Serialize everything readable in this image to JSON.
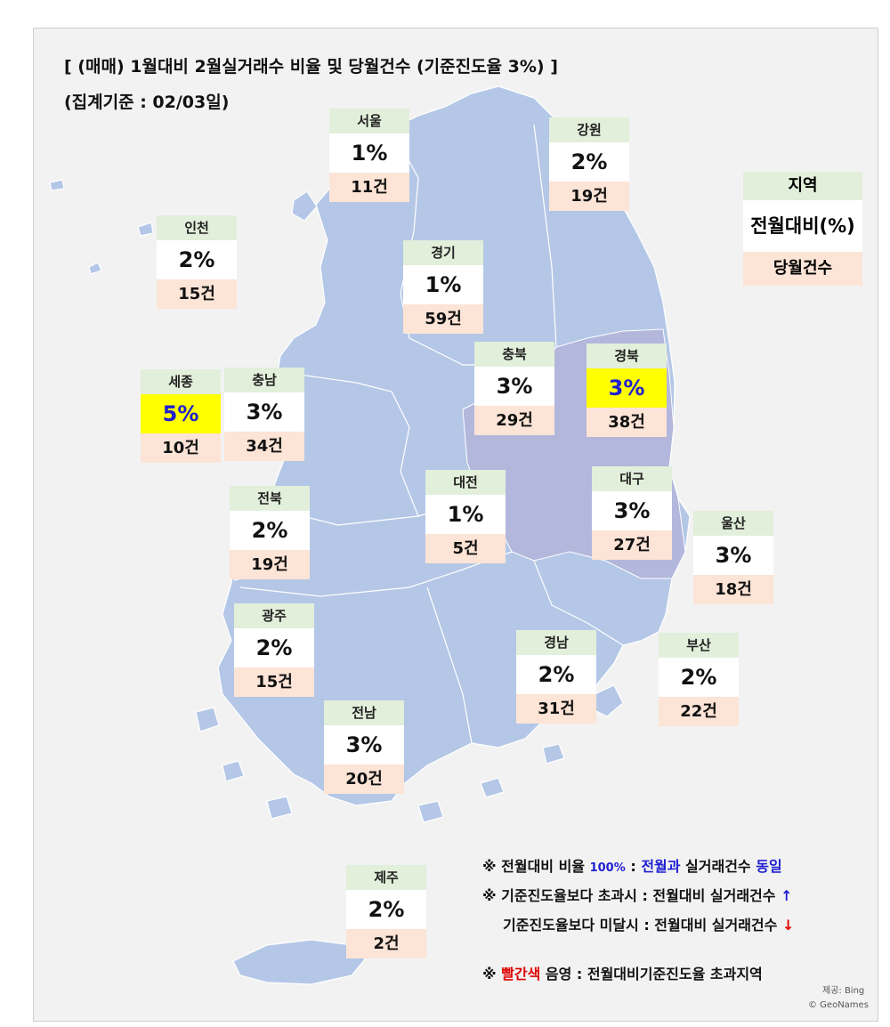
{
  "title_line1": "[ (매매) 1월대비 2월실거래수 비율 및 당월건수 (기준진도율 3%) ]",
  "title_line2": "(집계기준 : 02/03일)",
  "legend": {
    "name": "지역",
    "pct": "전월대비(%)",
    "cnt": "당월건수"
  },
  "regions": [
    {
      "id": "seoul",
      "name": "서울",
      "pct": "1%",
      "cnt": "11건",
      "highlight": false
    },
    {
      "id": "gangwon",
      "name": "강원",
      "pct": "2%",
      "cnt": "19건",
      "highlight": false
    },
    {
      "id": "incheon",
      "name": "인천",
      "pct": "2%",
      "cnt": "15건",
      "highlight": false
    },
    {
      "id": "gyeonggi",
      "name": "경기",
      "pct": "1%",
      "cnt": "59건",
      "highlight": false
    },
    {
      "id": "chungbuk",
      "name": "충북",
      "pct": "3%",
      "cnt": "29건",
      "highlight": false
    },
    {
      "id": "gyeongbuk",
      "name": "경북",
      "pct": "3%",
      "cnt": "38건",
      "highlight": true
    },
    {
      "id": "sejong",
      "name": "세종",
      "pct": "5%",
      "cnt": "10건",
      "highlight": true
    },
    {
      "id": "chungnam",
      "name": "충남",
      "pct": "3%",
      "cnt": "34건",
      "highlight": false
    },
    {
      "id": "daejeon",
      "name": "대전",
      "pct": "1%",
      "cnt": "5건",
      "highlight": false
    },
    {
      "id": "daegu",
      "name": "대구",
      "pct": "3%",
      "cnt": "27건",
      "highlight": false
    },
    {
      "id": "ulsan",
      "name": "울산",
      "pct": "3%",
      "cnt": "18건",
      "highlight": false
    },
    {
      "id": "jeonbuk",
      "name": "전북",
      "pct": "2%",
      "cnt": "19건",
      "highlight": false
    },
    {
      "id": "gwangju",
      "name": "광주",
      "pct": "2%",
      "cnt": "15건",
      "highlight": false
    },
    {
      "id": "gyeongnam",
      "name": "경남",
      "pct": "2%",
      "cnt": "31건",
      "highlight": false
    },
    {
      "id": "busan",
      "name": "부산",
      "pct": "2%",
      "cnt": "22건",
      "highlight": false
    },
    {
      "id": "jeonnam",
      "name": "전남",
      "pct": "3%",
      "cnt": "20건",
      "highlight": false
    },
    {
      "id": "jeju",
      "name": "제주",
      "pct": "2%",
      "cnt": "2건",
      "highlight": false
    }
  ],
  "notes": {
    "n1_prefix": "※ 전월대비 비율 ",
    "n1_pct": "100%",
    "n1_colon": " : ",
    "n1_blue": "전월과",
    "n1_mid": " 실거래건수 ",
    "n1_end": "동일",
    "n2": "※ 기준진도율보다 초과시 : 전월대비 실거래건수",
    "n2_arrow": "↑",
    "n3": "기준진도율보다 미달시 : 전월대비 실거래건수",
    "n3_arrow": "↓",
    "n4_prefix": "※ ",
    "n4_red": "빨간색",
    "n4_rest": " 음영 : 전월대비기준진도율 초과지역"
  },
  "credit1": "제공: Bing",
  "credit2": "© GeoNames",
  "colors": {
    "land": "#b4c7e7",
    "highlight_land": "#b3b7dc",
    "card_name": "#e2efda",
    "card_cnt": "#fce4d6",
    "highlight_pct": "#ffff00"
  }
}
